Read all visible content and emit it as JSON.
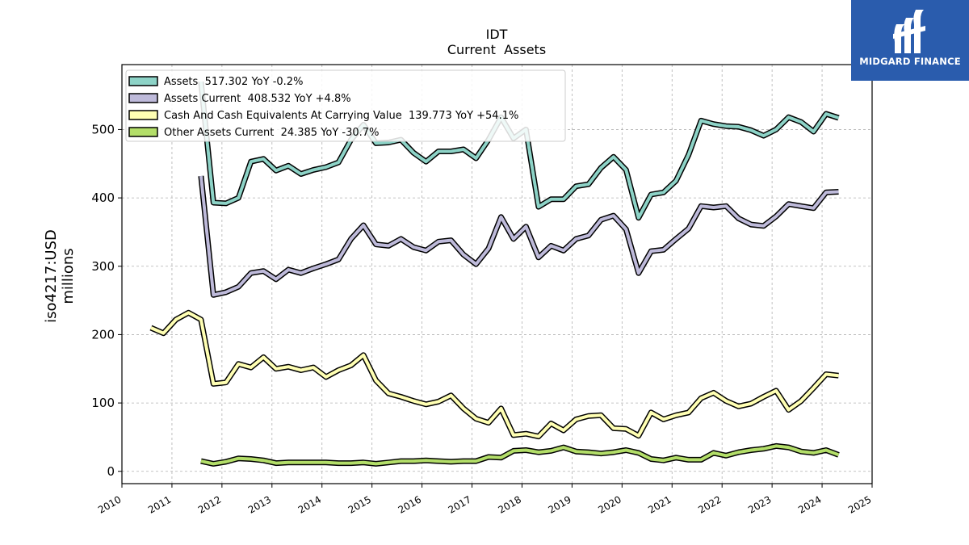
{
  "brand": {
    "name": "MIDGARD FINANCE",
    "bg_color": "#2a5cad"
  },
  "chart_data": {
    "type": "line",
    "title": "IDT",
    "subtitle": "Current  Assets",
    "ylabel_line1": "iso4217:USD",
    "ylabel_line2": "millions",
    "xlim": [
      2010.0,
      2025.0
    ],
    "ylim": [
      -18,
      595
    ],
    "x_ticks": [
      2010,
      2011,
      2012,
      2013,
      2014,
      2015,
      2016,
      2017,
      2018,
      2019,
      2020,
      2021,
      2022,
      2023,
      2024,
      2025
    ],
    "x_tick_labels": [
      "2010",
      "2011",
      "2012",
      "2013",
      "2014",
      "2015",
      "2016",
      "2017",
      "2018",
      "2019",
      "2020",
      "2021",
      "2022",
      "2023",
      "2024",
      "2025"
    ],
    "y_ticks": [
      0,
      100,
      200,
      300,
      400,
      500
    ],
    "y_tick_labels": [
      "0",
      "100",
      "200",
      "300",
      "400",
      "500"
    ],
    "grid": true,
    "legend_position": "top-left",
    "series": [
      {
        "name": "Assets",
        "legend": "Assets  517.302 YoY -0.2%",
        "color": "#8dd3c7",
        "points": [
          [
            2011.58,
            570
          ],
          [
            2011.83,
            393
          ],
          [
            2012.08,
            392
          ],
          [
            2012.33,
            400
          ],
          [
            2012.58,
            453
          ],
          [
            2012.83,
            457
          ],
          [
            2013.08,
            440
          ],
          [
            2013.33,
            447
          ],
          [
            2013.58,
            435
          ],
          [
            2013.83,
            441
          ],
          [
            2014.08,
            445
          ],
          [
            2014.33,
            452
          ],
          [
            2014.58,
            485
          ],
          [
            2014.83,
            507
          ],
          [
            2015.08,
            480
          ],
          [
            2015.33,
            481
          ],
          [
            2015.58,
            485
          ],
          [
            2015.83,
            466
          ],
          [
            2016.08,
            453
          ],
          [
            2016.33,
            468
          ],
          [
            2016.58,
            468
          ],
          [
            2016.83,
            471
          ],
          [
            2017.08,
            458
          ],
          [
            2017.33,
            485
          ],
          [
            2017.58,
            518
          ],
          [
            2017.83,
            487
          ],
          [
            2018.08,
            500
          ],
          [
            2018.33,
            387
          ],
          [
            2018.58,
            398
          ],
          [
            2018.83,
            398
          ],
          [
            2019.08,
            417
          ],
          [
            2019.33,
            420
          ],
          [
            2019.58,
            444
          ],
          [
            2019.83,
            460
          ],
          [
            2020.08,
            441
          ],
          [
            2020.33,
            371
          ],
          [
            2020.58,
            405
          ],
          [
            2020.83,
            408
          ],
          [
            2021.08,
            425
          ],
          [
            2021.33,
            463
          ],
          [
            2021.58,
            513
          ],
          [
            2021.83,
            508
          ],
          [
            2022.08,
            505
          ],
          [
            2022.33,
            504
          ],
          [
            2022.58,
            499
          ],
          [
            2022.83,
            491
          ],
          [
            2023.08,
            500
          ],
          [
            2023.33,
            518
          ],
          [
            2023.58,
            511
          ],
          [
            2023.83,
            497
          ],
          [
            2024.08,
            523
          ],
          [
            2024.33,
            517
          ]
        ]
      },
      {
        "name": "Assets Current",
        "legend": "Assets Current  408.532 YoY +4.8%",
        "color": "#bebada",
        "points": [
          [
            2011.58,
            432
          ],
          [
            2011.83,
            258
          ],
          [
            2012.08,
            262
          ],
          [
            2012.33,
            270
          ],
          [
            2012.58,
            290
          ],
          [
            2012.83,
            293
          ],
          [
            2013.08,
            281
          ],
          [
            2013.33,
            295
          ],
          [
            2013.58,
            290
          ],
          [
            2013.83,
            297
          ],
          [
            2014.08,
            303
          ],
          [
            2014.33,
            310
          ],
          [
            2014.58,
            340
          ],
          [
            2014.83,
            360
          ],
          [
            2015.08,
            332
          ],
          [
            2015.33,
            330
          ],
          [
            2015.58,
            340
          ],
          [
            2015.83,
            328
          ],
          [
            2016.08,
            323
          ],
          [
            2016.33,
            336
          ],
          [
            2016.58,
            338
          ],
          [
            2016.83,
            317
          ],
          [
            2017.08,
            303
          ],
          [
            2017.33,
            326
          ],
          [
            2017.58,
            372
          ],
          [
            2017.83,
            340
          ],
          [
            2018.08,
            358
          ],
          [
            2018.33,
            313
          ],
          [
            2018.58,
            330
          ],
          [
            2018.83,
            323
          ],
          [
            2019.08,
            340
          ],
          [
            2019.33,
            345
          ],
          [
            2019.58,
            368
          ],
          [
            2019.83,
            374
          ],
          [
            2020.08,
            354
          ],
          [
            2020.33,
            290
          ],
          [
            2020.58,
            322
          ],
          [
            2020.83,
            324
          ],
          [
            2021.08,
            340
          ],
          [
            2021.33,
            355
          ],
          [
            2021.58,
            388
          ],
          [
            2021.83,
            386
          ],
          [
            2022.08,
            388
          ],
          [
            2022.33,
            370
          ],
          [
            2022.58,
            361
          ],
          [
            2022.83,
            359
          ],
          [
            2023.08,
            373
          ],
          [
            2023.33,
            391
          ],
          [
            2023.58,
            388
          ],
          [
            2023.83,
            385
          ],
          [
            2024.08,
            408
          ],
          [
            2024.33,
            409
          ]
        ]
      },
      {
        "name": "Cash And Cash Equivalents At Carrying Value",
        "legend": "Cash And Cash Equivalents At Carrying Value  139.773 YoY +54.1%",
        "color": "#ffffb3",
        "points": [
          [
            2010.58,
            210
          ],
          [
            2010.83,
            202
          ],
          [
            2011.08,
            222
          ],
          [
            2011.33,
            232
          ],
          [
            2011.58,
            222
          ],
          [
            2011.83,
            128
          ],
          [
            2012.08,
            130
          ],
          [
            2012.33,
            157
          ],
          [
            2012.58,
            152
          ],
          [
            2012.83,
            167
          ],
          [
            2013.08,
            150
          ],
          [
            2013.33,
            153
          ],
          [
            2013.58,
            148
          ],
          [
            2013.83,
            152
          ],
          [
            2014.08,
            138
          ],
          [
            2014.33,
            148
          ],
          [
            2014.58,
            155
          ],
          [
            2014.83,
            170
          ],
          [
            2015.08,
            133
          ],
          [
            2015.33,
            114
          ],
          [
            2015.58,
            109
          ],
          [
            2015.83,
            103
          ],
          [
            2016.08,
            98
          ],
          [
            2016.33,
            102
          ],
          [
            2016.58,
            111
          ],
          [
            2016.83,
            92
          ],
          [
            2017.08,
            77
          ],
          [
            2017.33,
            71
          ],
          [
            2017.58,
            92
          ],
          [
            2017.83,
            53
          ],
          [
            2018.08,
            55
          ],
          [
            2018.33,
            51
          ],
          [
            2018.58,
            70
          ],
          [
            2018.83,
            60
          ],
          [
            2019.08,
            76
          ],
          [
            2019.33,
            81
          ],
          [
            2019.58,
            82
          ],
          [
            2019.83,
            63
          ],
          [
            2020.08,
            62
          ],
          [
            2020.33,
            52
          ],
          [
            2020.58,
            86
          ],
          [
            2020.83,
            76
          ],
          [
            2021.08,
            82
          ],
          [
            2021.33,
            86
          ],
          [
            2021.58,
            107
          ],
          [
            2021.83,
            115
          ],
          [
            2022.08,
            103
          ],
          [
            2022.33,
            95
          ],
          [
            2022.58,
            99
          ],
          [
            2022.83,
            109
          ],
          [
            2023.08,
            118
          ],
          [
            2023.33,
            90
          ],
          [
            2023.58,
            103
          ],
          [
            2023.83,
            122
          ],
          [
            2024.08,
            142
          ],
          [
            2024.33,
            140
          ]
        ]
      },
      {
        "name": "Other Assets Current",
        "legend": "Other Assets Current  24.385 YoY -30.7%",
        "color": "#b3de69",
        "points": [
          [
            2011.58,
            15
          ],
          [
            2011.83,
            11
          ],
          [
            2012.08,
            14
          ],
          [
            2012.33,
            19
          ],
          [
            2012.58,
            18
          ],
          [
            2012.83,
            16
          ],
          [
            2013.08,
            12
          ],
          [
            2013.33,
            13
          ],
          [
            2013.58,
            13
          ],
          [
            2013.83,
            13
          ],
          [
            2014.08,
            13
          ],
          [
            2014.33,
            12
          ],
          [
            2014.58,
            12
          ],
          [
            2014.83,
            13
          ],
          [
            2015.08,
            11
          ],
          [
            2015.33,
            13
          ],
          [
            2015.58,
            15
          ],
          [
            2015.83,
            15
          ],
          [
            2016.08,
            16
          ],
          [
            2016.33,
            15
          ],
          [
            2016.58,
            14
          ],
          [
            2016.83,
            15
          ],
          [
            2017.08,
            15
          ],
          [
            2017.33,
            21
          ],
          [
            2017.58,
            20
          ],
          [
            2017.83,
            30
          ],
          [
            2018.08,
            31
          ],
          [
            2018.33,
            28
          ],
          [
            2018.58,
            30
          ],
          [
            2018.83,
            35
          ],
          [
            2019.08,
            29
          ],
          [
            2019.33,
            28
          ],
          [
            2019.58,
            26
          ],
          [
            2019.83,
            28
          ],
          [
            2020.08,
            31
          ],
          [
            2020.33,
            27
          ],
          [
            2020.58,
            18
          ],
          [
            2020.83,
            16
          ],
          [
            2021.08,
            20
          ],
          [
            2021.33,
            17
          ],
          [
            2021.58,
            17
          ],
          [
            2021.83,
            27
          ],
          [
            2022.08,
            23
          ],
          [
            2022.33,
            28
          ],
          [
            2022.58,
            31
          ],
          [
            2022.83,
            33
          ],
          [
            2023.08,
            37
          ],
          [
            2023.33,
            35
          ],
          [
            2023.58,
            29
          ],
          [
            2023.83,
            27
          ],
          [
            2024.08,
            31
          ],
          [
            2024.33,
            24
          ]
        ]
      }
    ]
  }
}
